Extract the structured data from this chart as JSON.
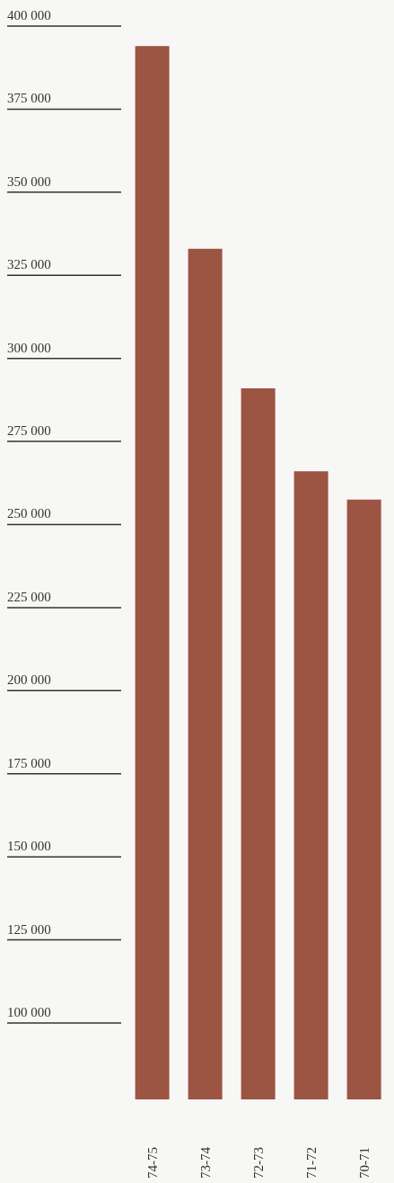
{
  "chart_data": {
    "type": "bar",
    "categories": [
      "74-75",
      "73-74",
      "72-73",
      "71-72",
      "70-71"
    ],
    "values": [
      394000,
      333000,
      291000,
      266000,
      257500
    ],
    "color": "#9c5443",
    "ylim": [
      77000,
      400000
    ],
    "yticks": [
      100000,
      125000,
      150000,
      175000,
      200000,
      225000,
      250000,
      275000,
      300000,
      325000,
      350000,
      375000,
      400000
    ]
  }
}
